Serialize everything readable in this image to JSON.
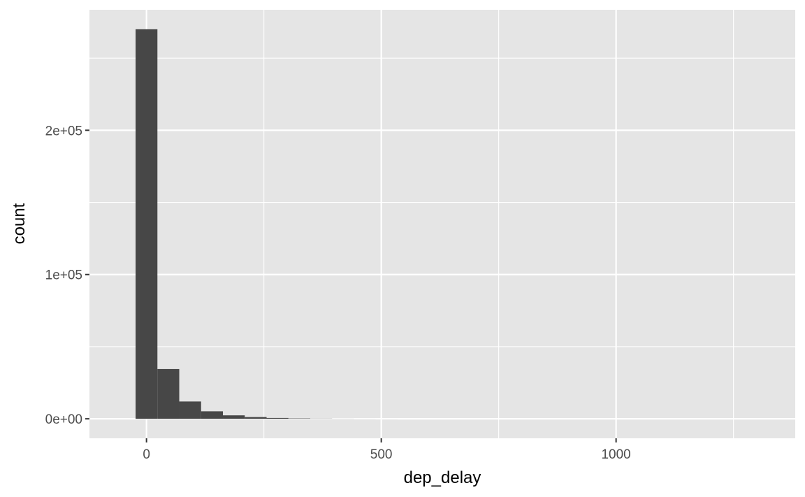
{
  "chart_data": {
    "type": "bar",
    "subtype": "histogram",
    "xlabel": "dep_delay",
    "ylabel": "count",
    "xlim": [
      -121.5,
      1381.5
    ],
    "ylim": [
      -13500,
      283500
    ],
    "grid": true,
    "x_ticks": [
      0,
      500,
      1000
    ],
    "x_tick_labels": [
      "0",
      "500",
      "1000"
    ],
    "x_minor_ticks": [
      250,
      750,
      1250
    ],
    "y_ticks": [
      0,
      100000,
      200000
    ],
    "y_tick_labels": [
      "0e+00",
      "1e+05",
      "2e+05"
    ],
    "y_minor_ticks": [
      50000,
      150000,
      250000
    ],
    "bin_width": 46.5,
    "bins": [
      {
        "x_start": -23.25,
        "x_end": 23.25,
        "count": 270000
      },
      {
        "x_start": 23.25,
        "x_end": 69.75,
        "count": 34500
      },
      {
        "x_start": 69.75,
        "x_end": 116.25,
        "count": 12000
      },
      {
        "x_start": 116.25,
        "x_end": 162.75,
        "count": 5200
      },
      {
        "x_start": 162.75,
        "x_end": 209.25,
        "count": 2400
      },
      {
        "x_start": 209.25,
        "x_end": 255.75,
        "count": 1200
      },
      {
        "x_start": 255.75,
        "x_end": 302.25,
        "count": 600
      },
      {
        "x_start": 302.25,
        "x_end": 348.75,
        "count": 300
      },
      {
        "x_start": 348.75,
        "x_end": 395.25,
        "count": 150
      },
      {
        "x_start": 395.25,
        "x_end": 441.75,
        "count": 80
      },
      {
        "x_start": 441.75,
        "x_end": 488.25,
        "count": 40
      },
      {
        "x_start": 488.25,
        "x_end": 534.75,
        "count": 20
      }
    ]
  },
  "colors": {
    "panel_background": "#e5e5e5",
    "grid_line": "#ffffff",
    "bar_fill": "#474747",
    "tick_mark": "#333333",
    "tick_label": "#4d4d4d",
    "axis_title": "#000000"
  }
}
